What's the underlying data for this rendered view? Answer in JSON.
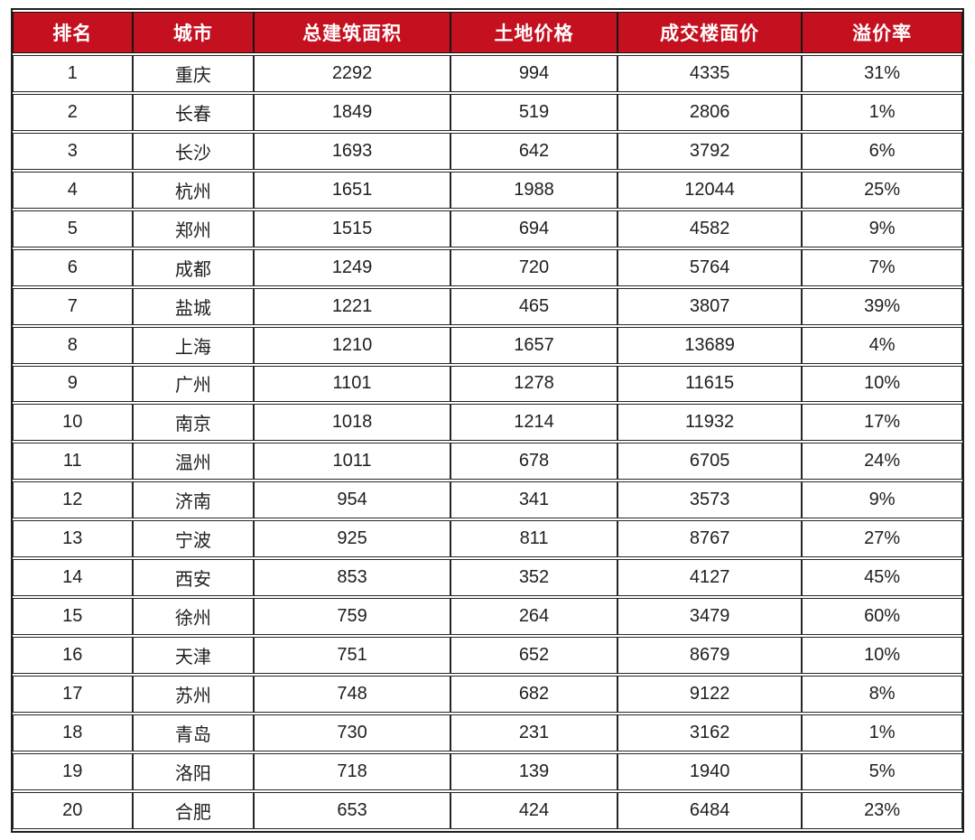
{
  "chart_data": {
    "type": "table",
    "columns": [
      "排名",
      "城市",
      "总建筑面积",
      "土地价格",
      "成交楼面价",
      "溢价率"
    ],
    "rows": [
      [
        "1",
        "重庆",
        "2292",
        "994",
        "4335",
        "31%"
      ],
      [
        "2",
        "长春",
        "1849",
        "519",
        "2806",
        "1%"
      ],
      [
        "3",
        "长沙",
        "1693",
        "642",
        "3792",
        "6%"
      ],
      [
        "4",
        "杭州",
        "1651",
        "1988",
        "12044",
        "25%"
      ],
      [
        "5",
        "郑州",
        "1515",
        "694",
        "4582",
        "9%"
      ],
      [
        "6",
        "成都",
        "1249",
        "720",
        "5764",
        "7%"
      ],
      [
        "7",
        "盐城",
        "1221",
        "465",
        "3807",
        "39%"
      ],
      [
        "8",
        "上海",
        "1210",
        "1657",
        "13689",
        "4%"
      ],
      [
        "9",
        "广州",
        "1101",
        "1278",
        "11615",
        "10%"
      ],
      [
        "10",
        "南京",
        "1018",
        "1214",
        "11932",
        "17%"
      ],
      [
        "11",
        "温州",
        "1011",
        "678",
        "6705",
        "24%"
      ],
      [
        "12",
        "济南",
        "954",
        "341",
        "3573",
        "9%"
      ],
      [
        "13",
        "宁波",
        "925",
        "811",
        "8767",
        "27%"
      ],
      [
        "14",
        "西安",
        "853",
        "352",
        "4127",
        "45%"
      ],
      [
        "15",
        "徐州",
        "759",
        "264",
        "3479",
        "60%"
      ],
      [
        "16",
        "天津",
        "751",
        "652",
        "8679",
        "10%"
      ],
      [
        "17",
        "苏州",
        "748",
        "682",
        "9122",
        "8%"
      ],
      [
        "18",
        "青岛",
        "730",
        "231",
        "3162",
        "1%"
      ],
      [
        "19",
        "洛阳",
        "718",
        "139",
        "1940",
        "5%"
      ],
      [
        "20",
        "合肥",
        "653",
        "424",
        "6484",
        "23%"
      ]
    ],
    "legend": "none",
    "grid": "on"
  },
  "style": {
    "header_bg": "#C4101F",
    "header_text": "#FFFFFF",
    "border": "#1F1F1F",
    "body_text": "#1F1F1F"
  }
}
